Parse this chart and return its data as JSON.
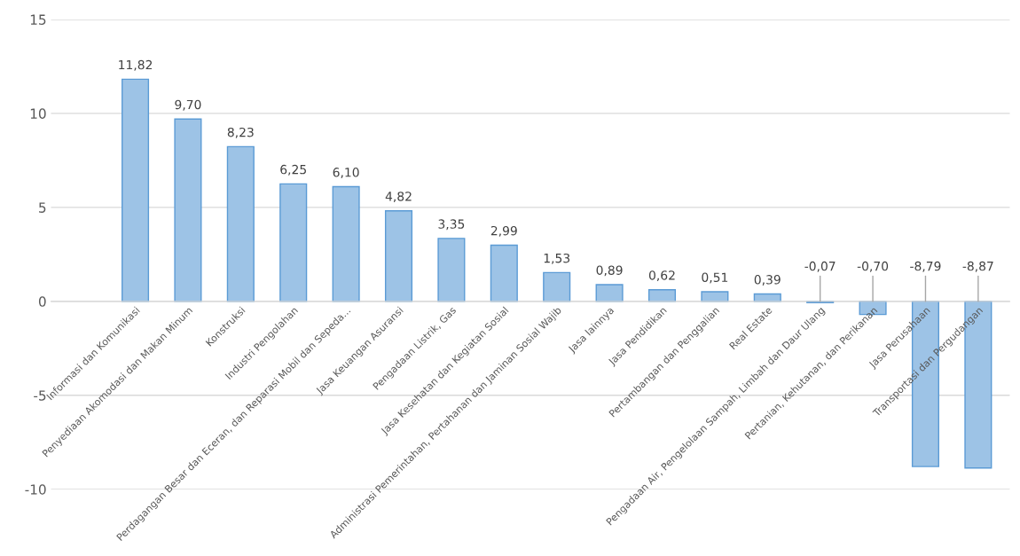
{
  "chart_data": {
    "type": "bar",
    "categories": [
      "Informasi dan Komunikasi",
      "Penyediaan Akomodasi dan Makan Minum",
      "Konstruksi",
      "Industri Pengolahan",
      "Perdagangan Besar dan Eceran, dan Reparasi Mobil dan Sepeda...",
      "Jasa Keuangan Asuransi",
      "Pengadaan Listrik, Gas",
      "Jasa Kesehatan dan Kegiatan Sosial",
      "Administrasi Pemerintahan, Pertahanan dan Jaminan Sosial Wajib",
      "Jasa lainnya",
      "Jasa Pendidikan",
      "Pertambangan dan Penggalian",
      "Real Estate",
      "Pengadaan Air, Pengelolaan Sampah, Limbah dan Daur Ulang",
      "Pertanian, Kehutanan, dan Perikanan",
      "Jasa Perusahaan",
      "Transportasi dan Pergudangan"
    ],
    "values": [
      11.82,
      9.7,
      8.23,
      6.25,
      6.1,
      4.82,
      3.35,
      2.99,
      1.53,
      0.89,
      0.62,
      0.51,
      0.39,
      -0.07,
      -0.7,
      -8.79,
      -8.87
    ],
    "value_labels": [
      "11,82",
      "9,70",
      "8,23",
      "6,25",
      "6,10",
      "4,82",
      "3,35",
      "2,99",
      "1,53",
      "0,89",
      "0,62",
      "0,51",
      "0,39",
      "-0,07",
      "-0,70",
      "-8,79",
      "-8,87"
    ],
    "color": "#9dc3e6",
    "ylim": [
      -10,
      15
    ],
    "yticks": [
      -10,
      -5,
      0,
      5,
      10,
      15
    ],
    "grid": "y"
  }
}
